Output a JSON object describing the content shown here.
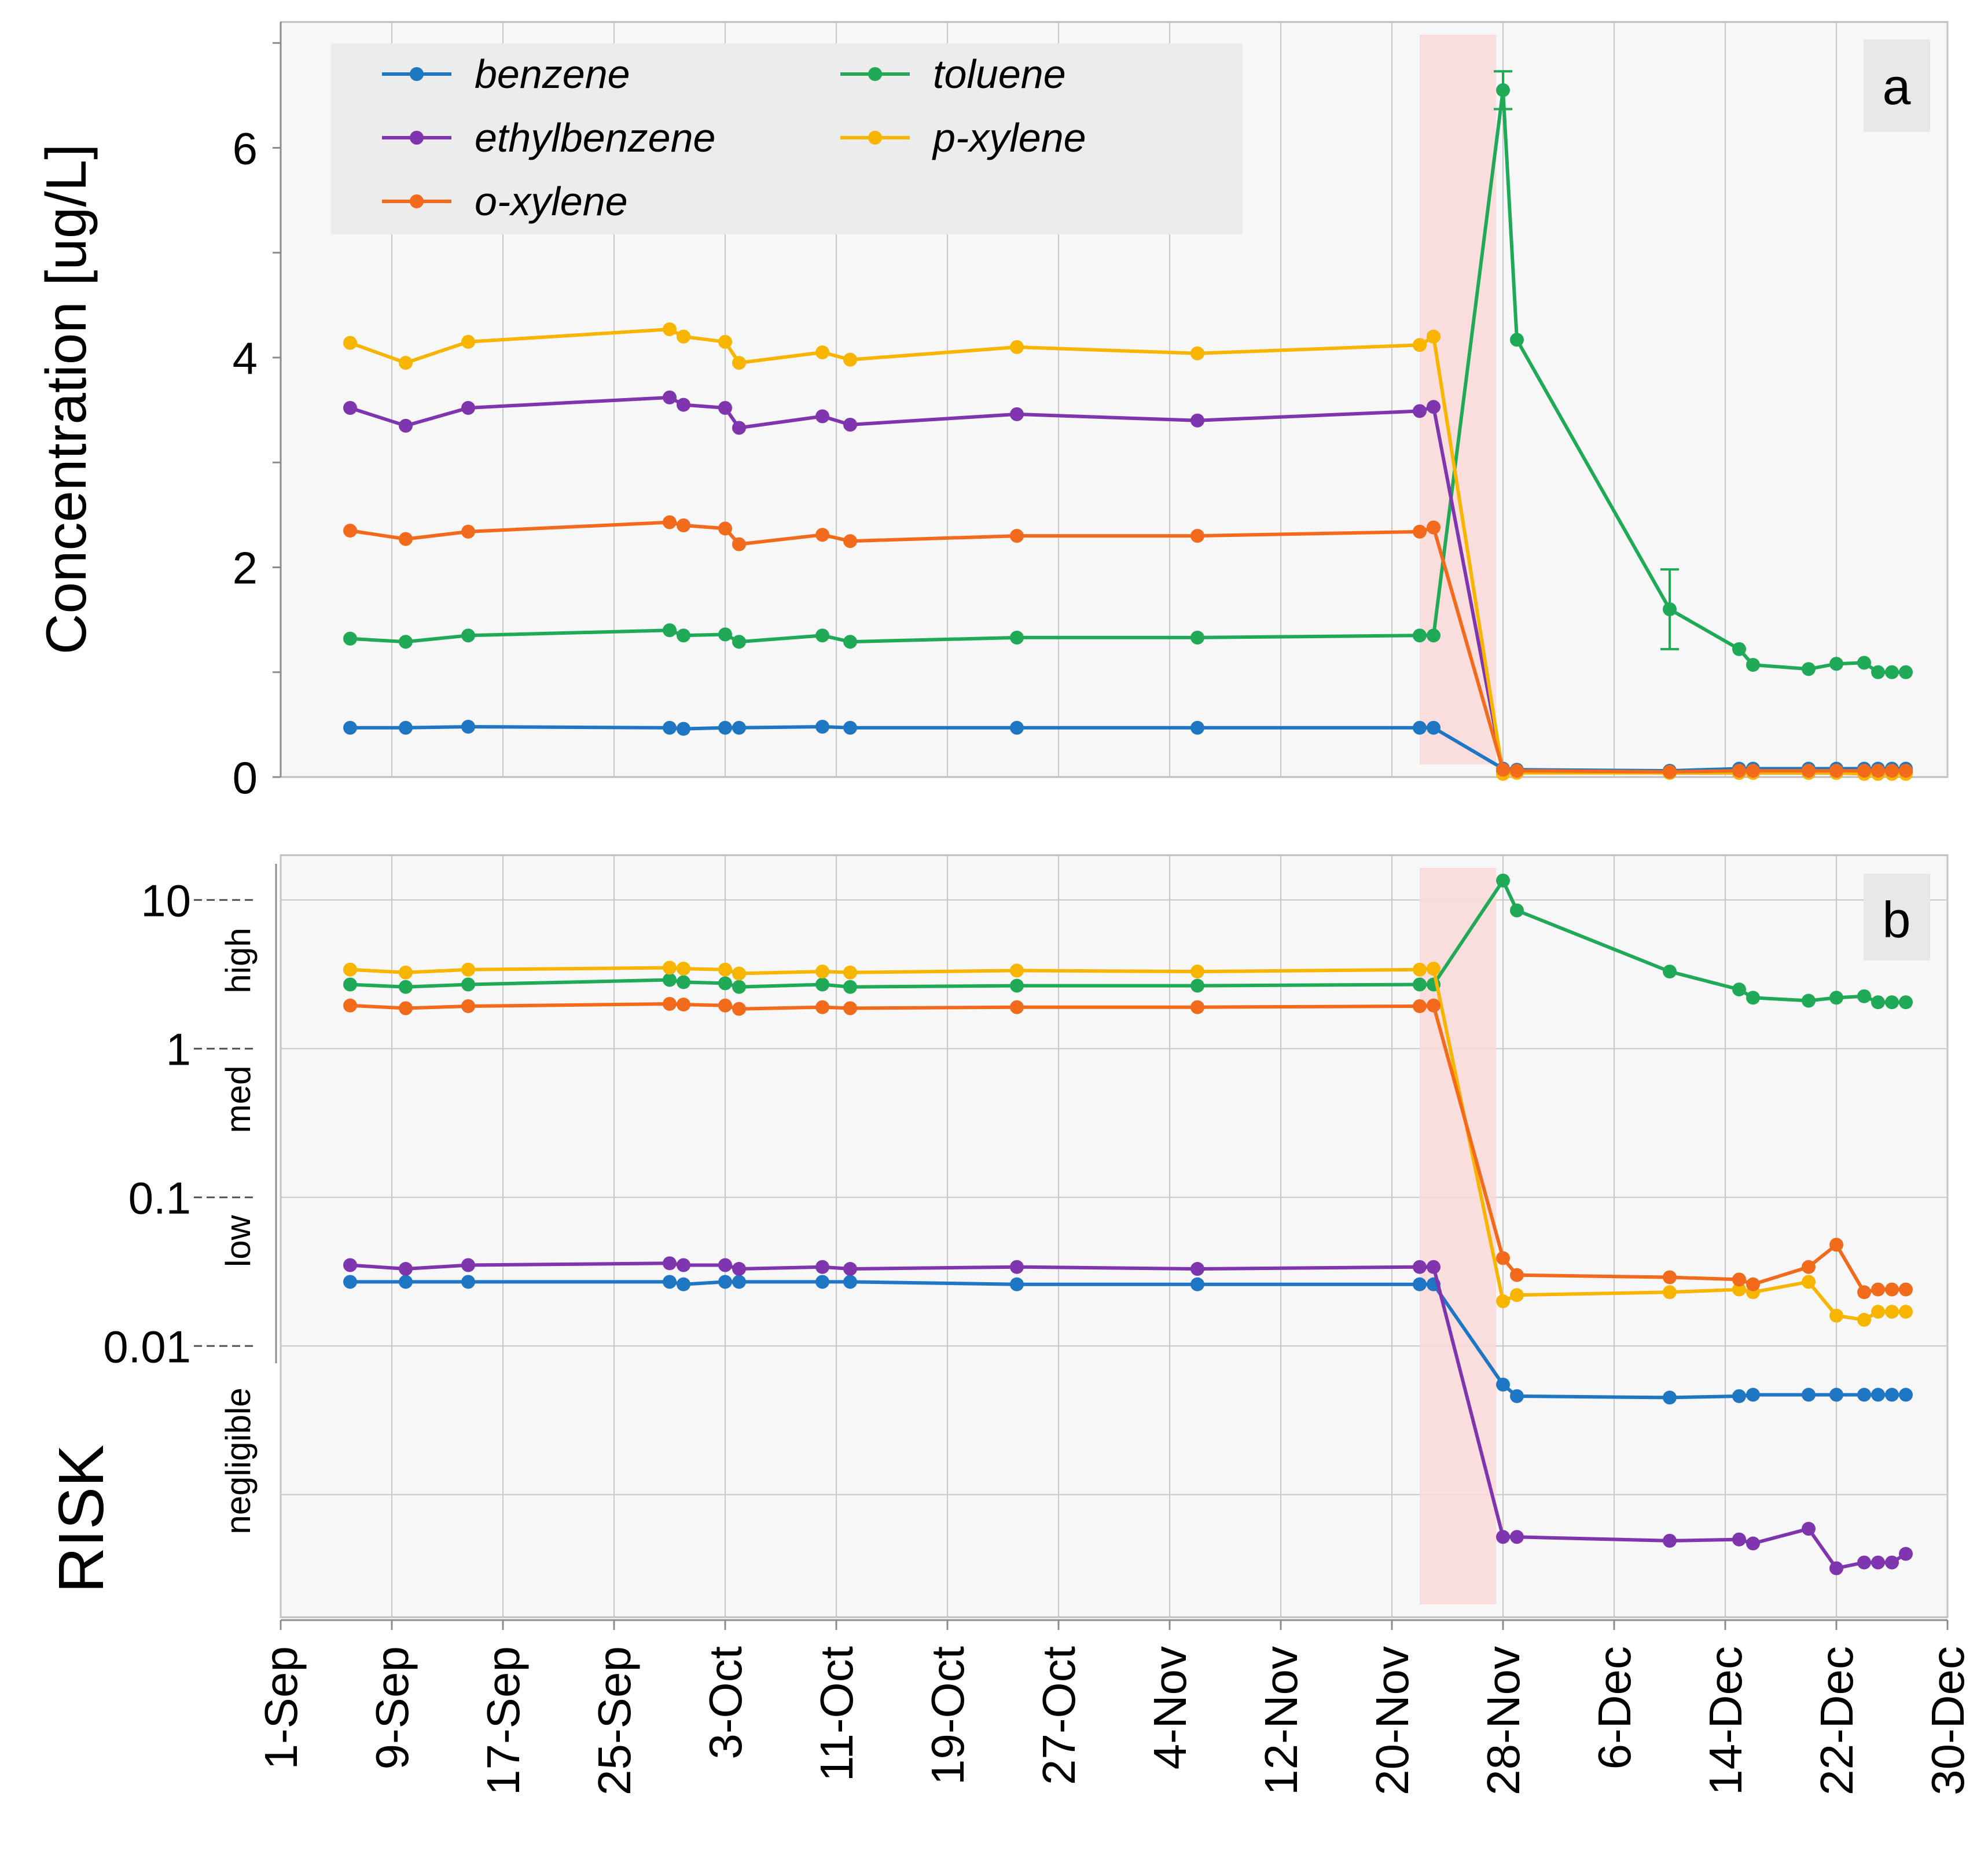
{
  "figure": {
    "panel_a_label": "a",
    "panel_b_label": "b",
    "ylabel_a": "Concentration [ug/L]",
    "ylabel_b": "RISK",
    "risk_bands": [
      "high",
      "med",
      "low",
      "negligible"
    ],
    "x_ticks": [
      "1-Sep",
      "9-Sep",
      "17-Sep",
      "25-Sep",
      "3-Oct",
      "11-Oct",
      "19-Oct",
      "27-Oct",
      "4-Nov",
      "12-Nov",
      "20-Nov",
      "28-Nov",
      "6-Dec",
      "14-Dec",
      "22-Dec",
      "30-Dec"
    ],
    "colors": {
      "benzene": "#1f77c4",
      "toluene": "#20a957",
      "ethylbenzene": "#7f35ad",
      "p-xylene": "#f7b500",
      "o-xylene": "#f26b1d",
      "highlight": "#f9dada"
    }
  },
  "chart_data": [
    {
      "type": "line",
      "panel": "a",
      "title": "",
      "xlabel": "",
      "ylabel": "Concentration [ug/L]",
      "x_unit": "days since 1-Sep",
      "x_range": [
        0,
        120
      ],
      "ylim": [
        0,
        7.2
      ],
      "y_ticks": [
        0,
        2,
        4,
        6
      ],
      "legend_position": "top-left",
      "highlight_x_range": [
        82,
        87.5
      ],
      "x": [
        5,
        9,
        13.5,
        28,
        29,
        32,
        33,
        39,
        41,
        53,
        66,
        82,
        83,
        88,
        89,
        100,
        105,
        106,
        110,
        112,
        114,
        115,
        116,
        117
      ],
      "series": [
        {
          "name": "benzene",
          "values": [
            0.47,
            0.47,
            0.48,
            0.47,
            0.46,
            0.47,
            0.47,
            0.48,
            0.47,
            0.47,
            0.47,
            0.47,
            0.47,
            0.08,
            0.07,
            0.06,
            0.08,
            0.08,
            0.08,
            0.08,
            0.08,
            0.08,
            0.08,
            0.08
          ]
        },
        {
          "name": "toluene",
          "values": [
            1.32,
            1.29,
            1.35,
            1.4,
            1.35,
            1.36,
            1.29,
            1.35,
            1.29,
            1.33,
            1.33,
            1.35,
            1.35,
            6.55,
            4.17,
            1.6,
            1.22,
            1.07,
            1.03,
            1.08,
            1.09,
            1.0,
            1.0,
            1.0
          ]
        },
        {
          "name": "ethylbenzene",
          "values": [
            3.52,
            3.35,
            3.52,
            3.62,
            3.55,
            3.52,
            3.33,
            3.44,
            3.36,
            3.46,
            3.4,
            3.49,
            3.53,
            0.06,
            0.05,
            0.04,
            0.04,
            0.04,
            0.04,
            0.04,
            0.04,
            0.04,
            0.04,
            0.04
          ]
        },
        {
          "name": "p-xylene",
          "values": [
            4.14,
            3.95,
            4.15,
            4.27,
            4.2,
            4.15,
            3.95,
            4.05,
            3.98,
            4.1,
            4.04,
            4.12,
            4.2,
            0.03,
            0.04,
            0.04,
            0.04,
            0.04,
            0.04,
            0.04,
            0.03,
            0.03,
            0.03,
            0.03
          ]
        },
        {
          "name": "o-xylene",
          "values": [
            2.35,
            2.27,
            2.34,
            2.43,
            2.4,
            2.37,
            2.22,
            2.31,
            2.25,
            2.3,
            2.3,
            2.34,
            2.38,
            0.07,
            0.06,
            0.05,
            0.06,
            0.06,
            0.06,
            0.06,
            0.06,
            0.06,
            0.06,
            0.06
          ]
        }
      ]
    },
    {
      "type": "line",
      "panel": "b",
      "scale": "log",
      "title": "",
      "xlabel": "",
      "ylabel": "RISK",
      "x_unit": "days since 1-Sep",
      "x_range": [
        0,
        120
      ],
      "ylim": [
        0.00015,
        20
      ],
      "y_ticks": [
        10,
        1,
        0.1,
        0.01
      ],
      "y_tick_labels": [
        "10",
        "1",
        "0.1",
        "0.01"
      ],
      "highlight_x_range": [
        82,
        87.5
      ],
      "x": [
        5,
        9,
        13.5,
        28,
        29,
        32,
        33,
        39,
        41,
        53,
        66,
        82,
        83,
        88,
        89,
        100,
        105,
        106,
        110,
        112,
        114,
        115,
        116,
        117
      ],
      "series": [
        {
          "name": "benzene",
          "values": [
            0.027,
            0.027,
            0.027,
            0.027,
            0.026,
            0.027,
            0.027,
            0.027,
            0.027,
            0.026,
            0.026,
            0.026,
            0.026,
            0.0055,
            0.0046,
            0.0045,
            0.0046,
            0.0047,
            0.0047,
            0.0047,
            0.0047,
            0.0047,
            0.0047,
            0.0047
          ]
        },
        {
          "name": "toluene",
          "values": [
            2.7,
            2.6,
            2.7,
            2.9,
            2.8,
            2.75,
            2.6,
            2.7,
            2.6,
            2.65,
            2.65,
            2.7,
            2.7,
            13.5,
            8.5,
            3.3,
            2.5,
            2.2,
            2.1,
            2.2,
            2.25,
            2.05,
            2.05,
            2.05
          ]
        },
        {
          "name": "ethylbenzene",
          "values": [
            0.035,
            0.033,
            0.035,
            0.036,
            0.035,
            0.035,
            0.033,
            0.034,
            0.033,
            0.034,
            0.033,
            0.034,
            0.034,
            0.00052,
            0.00052,
            0.00049,
            0.0005,
            0.00047,
            0.00059,
            0.00032,
            0.00035,
            0.00035,
            0.00035,
            0.0004
          ]
        },
        {
          "name": "p-xylene",
          "values": [
            3.4,
            3.25,
            3.4,
            3.5,
            3.45,
            3.4,
            3.2,
            3.3,
            3.25,
            3.35,
            3.3,
            3.4,
            3.45,
            0.02,
            0.022,
            0.023,
            0.024,
            0.023,
            0.027,
            0.016,
            0.015,
            0.017,
            0.017,
            0.017
          ]
        },
        {
          "name": "o-xylene",
          "values": [
            1.95,
            1.87,
            1.93,
            2.0,
            1.98,
            1.95,
            1.85,
            1.9,
            1.87,
            1.9,
            1.9,
            1.93,
            1.95,
            0.039,
            0.03,
            0.029,
            0.028,
            0.026,
            0.034,
            0.048,
            0.023,
            0.024,
            0.024,
            0.024
          ]
        }
      ]
    }
  ]
}
